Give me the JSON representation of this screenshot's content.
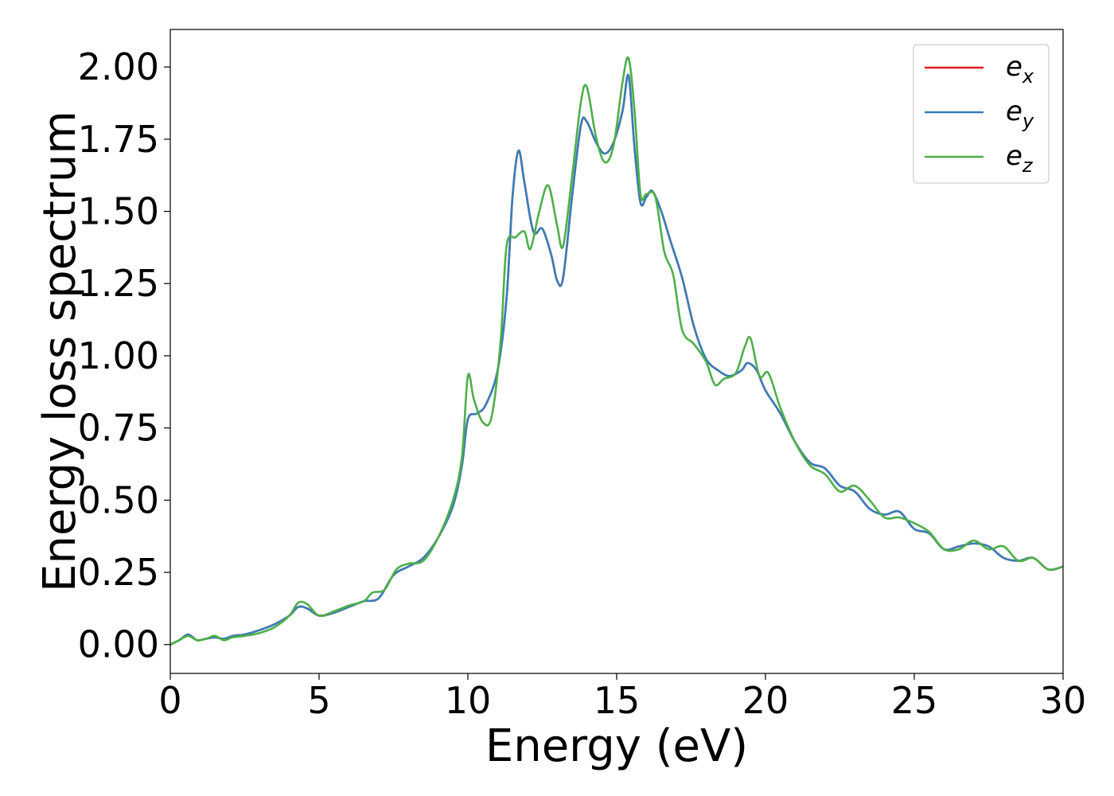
{
  "chart_data": {
    "type": "line",
    "title": "",
    "xlabel": "Energy (eV)",
    "ylabel": "Energy loss spectrum",
    "xlim": [
      0,
      30
    ],
    "ylim": [
      -0.1,
      2.13
    ],
    "xticks": [
      0,
      5,
      10,
      15,
      20,
      25,
      30
    ],
    "xtick_labels": [
      "0",
      "5",
      "10",
      "15",
      "20",
      "25",
      "30"
    ],
    "yticks": [
      0.0,
      0.25,
      0.5,
      0.75,
      1.0,
      1.25,
      1.5,
      1.75,
      2.0
    ],
    "ytick_labels": [
      "0.00",
      "0.25",
      "0.50",
      "0.75",
      "1.00",
      "1.25",
      "1.50",
      "1.75",
      "2.00"
    ],
    "grid": false,
    "legend_position": "top-right",
    "series": [
      {
        "name": "e_x",
        "legend_base": "e",
        "legend_sub": "x",
        "color": "#e41a1c",
        "x": [
          0,
          0.3,
          0.6,
          0.9,
          1.2,
          1.5,
          1.8,
          2.1,
          2.5,
          3.0,
          3.5,
          4.0,
          4.3,
          4.6,
          5.0,
          5.5,
          6.0,
          6.5,
          7.0,
          7.5,
          8.0,
          8.5,
          9.0,
          9.5,
          9.8,
          10.0,
          10.3,
          10.6,
          11.0,
          11.3,
          11.5,
          11.7,
          11.9,
          12.2,
          12.5,
          12.8,
          13.0,
          13.2,
          13.5,
          13.8,
          14.0,
          14.3,
          14.6,
          14.9,
          15.2,
          15.4,
          15.6,
          15.8,
          16.0,
          16.2,
          16.5,
          16.8,
          17.2,
          17.6,
          18.0,
          18.4,
          18.8,
          19.2,
          19.4,
          19.7,
          20.0,
          20.5,
          21.0,
          21.5,
          22.0,
          22.5,
          23.0,
          23.5,
          24.0,
          24.5,
          25.0,
          25.5,
          26.0,
          26.5,
          27.0,
          27.5,
          28.0,
          28.5,
          29.0,
          29.5,
          30.0
        ],
        "y": [
          0.0,
          0.015,
          0.035,
          0.015,
          0.02,
          0.025,
          0.02,
          0.03,
          0.035,
          0.05,
          0.07,
          0.1,
          0.13,
          0.125,
          0.1,
          0.11,
          0.13,
          0.15,
          0.16,
          0.24,
          0.27,
          0.3,
          0.37,
          0.48,
          0.62,
          0.78,
          0.8,
          0.83,
          0.95,
          1.2,
          1.55,
          1.71,
          1.6,
          1.43,
          1.44,
          1.35,
          1.26,
          1.27,
          1.55,
          1.8,
          1.81,
          1.74,
          1.7,
          1.74,
          1.85,
          1.97,
          1.72,
          1.53,
          1.55,
          1.57,
          1.5,
          1.4,
          1.27,
          1.1,
          0.99,
          0.95,
          0.93,
          0.95,
          0.975,
          0.95,
          0.88,
          0.8,
          0.7,
          0.63,
          0.61,
          0.55,
          0.53,
          0.47,
          0.45,
          0.46,
          0.4,
          0.385,
          0.33,
          0.34,
          0.35,
          0.34,
          0.3,
          0.29,
          0.3,
          0.26,
          0.27
        ]
      },
      {
        "name": "e_y",
        "legend_base": "e",
        "legend_sub": "y",
        "color": "#377eb8",
        "x": [
          0,
          0.3,
          0.6,
          0.9,
          1.2,
          1.5,
          1.8,
          2.1,
          2.5,
          3.0,
          3.5,
          4.0,
          4.3,
          4.6,
          5.0,
          5.5,
          6.0,
          6.5,
          7.0,
          7.5,
          8.0,
          8.5,
          9.0,
          9.5,
          9.8,
          10.0,
          10.3,
          10.6,
          11.0,
          11.3,
          11.5,
          11.7,
          11.9,
          12.2,
          12.5,
          12.8,
          13.0,
          13.2,
          13.5,
          13.8,
          14.0,
          14.3,
          14.6,
          14.9,
          15.2,
          15.4,
          15.6,
          15.8,
          16.0,
          16.2,
          16.5,
          16.8,
          17.2,
          17.6,
          18.0,
          18.4,
          18.8,
          19.2,
          19.4,
          19.7,
          20.0,
          20.5,
          21.0,
          21.5,
          22.0,
          22.5,
          23.0,
          23.5,
          24.0,
          24.5,
          25.0,
          25.5,
          26.0,
          26.5,
          27.0,
          27.5,
          28.0,
          28.5,
          29.0,
          29.5,
          30.0
        ],
        "y": [
          0.0,
          0.015,
          0.035,
          0.015,
          0.02,
          0.025,
          0.02,
          0.03,
          0.035,
          0.05,
          0.07,
          0.1,
          0.13,
          0.125,
          0.1,
          0.11,
          0.13,
          0.15,
          0.16,
          0.24,
          0.27,
          0.3,
          0.37,
          0.48,
          0.62,
          0.78,
          0.8,
          0.83,
          0.95,
          1.2,
          1.55,
          1.71,
          1.6,
          1.43,
          1.44,
          1.35,
          1.26,
          1.27,
          1.55,
          1.8,
          1.81,
          1.74,
          1.7,
          1.74,
          1.85,
          1.97,
          1.72,
          1.53,
          1.55,
          1.57,
          1.5,
          1.4,
          1.27,
          1.1,
          0.99,
          0.95,
          0.93,
          0.95,
          0.975,
          0.95,
          0.88,
          0.8,
          0.7,
          0.63,
          0.61,
          0.55,
          0.53,
          0.47,
          0.45,
          0.46,
          0.4,
          0.385,
          0.33,
          0.34,
          0.35,
          0.34,
          0.3,
          0.29,
          0.3,
          0.26,
          0.27
        ]
      },
      {
        "name": "e_z",
        "legend_base": "e",
        "legend_sub": "z",
        "color": "#4daf4a",
        "x": [
          0,
          0.3,
          0.6,
          0.9,
          1.2,
          1.5,
          1.8,
          2.1,
          2.5,
          3.0,
          3.5,
          4.0,
          4.3,
          4.6,
          5.0,
          5.5,
          6.0,
          6.5,
          6.8,
          7.2,
          7.6,
          8.0,
          8.5,
          9.0,
          9.5,
          9.8,
          10.0,
          10.2,
          10.5,
          10.8,
          11.1,
          11.3,
          11.6,
          11.9,
          12.1,
          12.4,
          12.7,
          13.0,
          13.2,
          13.5,
          13.8,
          14.0,
          14.3,
          14.6,
          14.9,
          15.2,
          15.4,
          15.6,
          15.8,
          16.0,
          16.3,
          16.6,
          16.9,
          17.2,
          17.6,
          18.0,
          18.3,
          18.6,
          19.0,
          19.3,
          19.5,
          19.8,
          20.1,
          20.5,
          21.0,
          21.5,
          22.0,
          22.5,
          23.0,
          23.5,
          24.0,
          24.5,
          25.0,
          25.5,
          26.0,
          26.5,
          27.0,
          27.5,
          28.0,
          28.5,
          29.0,
          29.5,
          30.0
        ],
        "y": [
          0.0,
          0.015,
          0.03,
          0.015,
          0.02,
          0.03,
          0.015,
          0.025,
          0.03,
          0.04,
          0.06,
          0.1,
          0.145,
          0.14,
          0.1,
          0.115,
          0.135,
          0.15,
          0.18,
          0.19,
          0.26,
          0.28,
          0.29,
          0.37,
          0.5,
          0.65,
          0.93,
          0.85,
          0.77,
          0.79,
          1.05,
          1.38,
          1.41,
          1.43,
          1.37,
          1.5,
          1.59,
          1.45,
          1.38,
          1.62,
          1.88,
          1.93,
          1.76,
          1.67,
          1.73,
          1.95,
          2.03,
          1.85,
          1.56,
          1.56,
          1.55,
          1.36,
          1.28,
          1.09,
          1.04,
          0.98,
          0.9,
          0.92,
          0.94,
          1.03,
          1.06,
          0.93,
          0.94,
          0.82,
          0.7,
          0.62,
          0.59,
          0.53,
          0.55,
          0.5,
          0.44,
          0.44,
          0.42,
          0.39,
          0.33,
          0.33,
          0.36,
          0.33,
          0.34,
          0.29,
          0.3,
          0.26,
          0.27
        ]
      }
    ]
  }
}
